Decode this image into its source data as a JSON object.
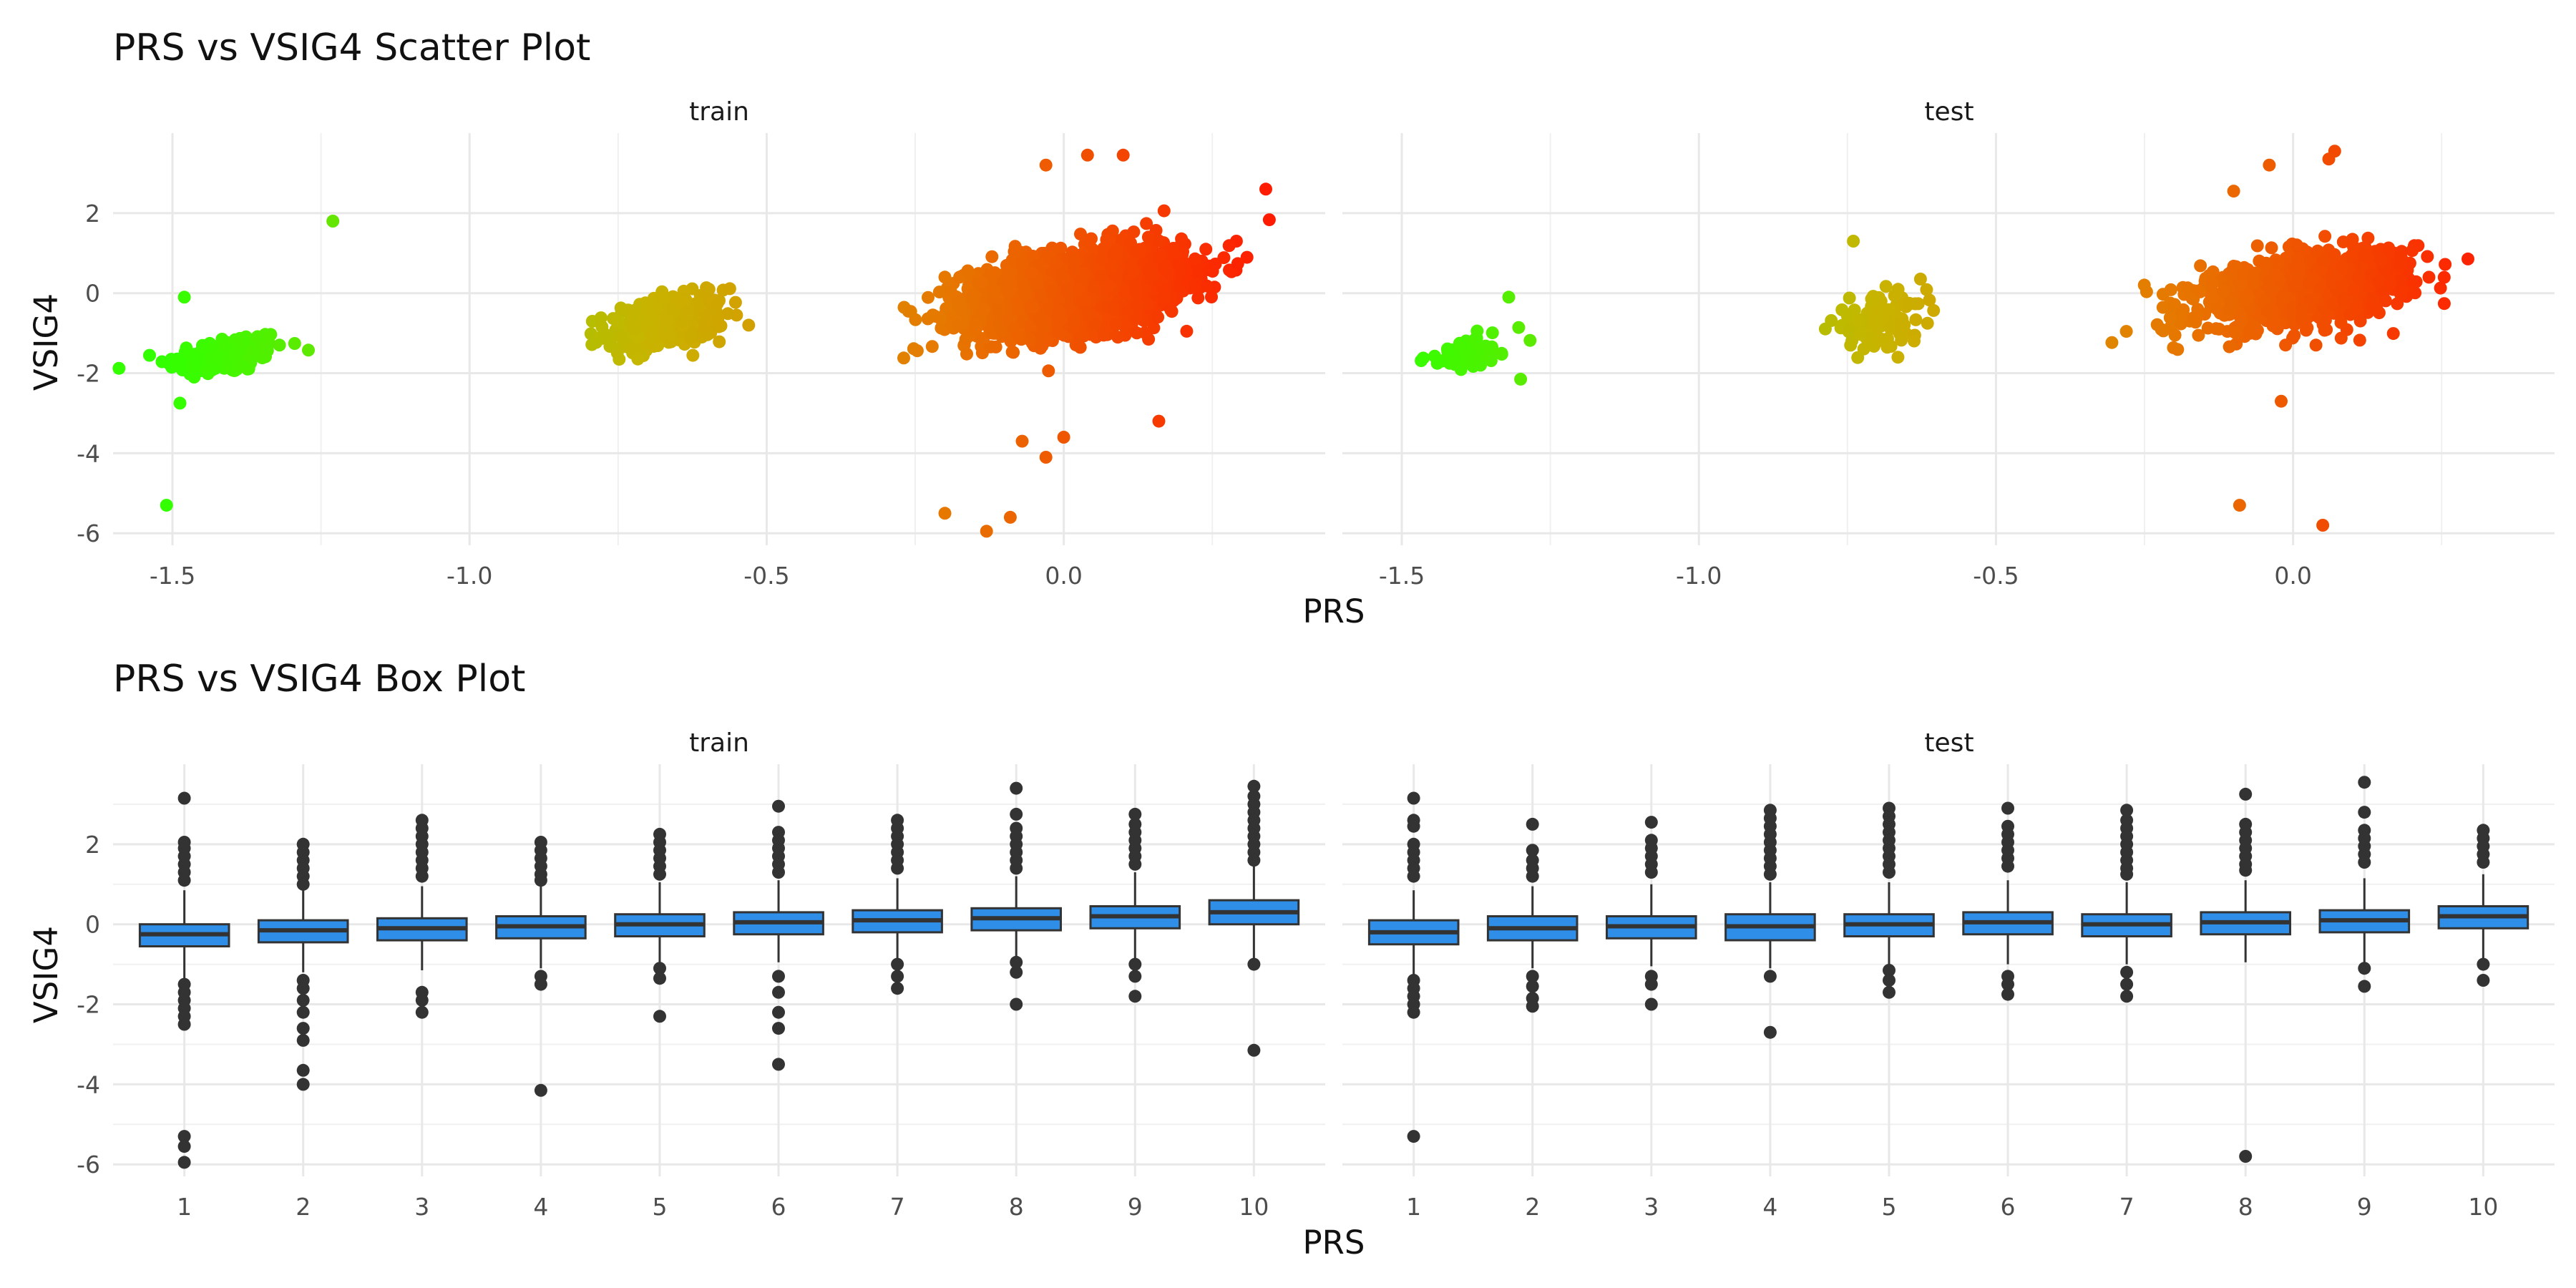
{
  "chart_data": [
    {
      "type": "scatter",
      "title": "PRS vs VSIG4 Scatter Plot",
      "xlabel": "PRS",
      "ylabel": "VSIG4",
      "xlim": [
        -1.6,
        0.44
      ],
      "ylim": [
        -6.3,
        4.0
      ],
      "x_ticks": [
        -1.5,
        -1.0,
        -0.5,
        0.0
      ],
      "y_ticks": [
        -6,
        -4,
        -2,
        0,
        2
      ],
      "x_tick_labels": [
        "-1.5",
        "-1.0",
        "-0.5",
        "0.0"
      ],
      "y_tick_labels": [
        "-6",
        "-4",
        "-2",
        "0",
        "2"
      ],
      "grid": true,
      "color_scale": {
        "low": "#33ff00",
        "mid": "#c8b400",
        "high": "#ff1a00"
      },
      "panels": [
        {
          "name": "train",
          "clusters": [
            {
              "center": [
                -1.41,
                -1.55
              ],
              "spread": [
                0.05,
                0.35
              ],
              "count": 180
            },
            {
              "center": [
                -0.67,
                -0.75
              ],
              "spread": [
                0.05,
                0.45
              ],
              "count": 320
            },
            {
              "center": [
                0.02,
                0.05
              ],
              "spread": [
                0.09,
                0.7
              ],
              "count": 2200
            }
          ],
          "outliers": [
            [
              -1.23,
              1.8
            ],
            [
              -1.51,
              -5.3
            ],
            [
              -1.48,
              -0.1
            ],
            [
              0.16,
              -3.2
            ],
            [
              0.34,
              2.6
            ],
            [
              -0.2,
              -5.5
            ],
            [
              -0.13,
              -5.95
            ],
            [
              -0.09,
              -5.6
            ],
            [
              -0.07,
              -3.7
            ],
            [
              -0.03,
              -4.1
            ],
            [
              0.0,
              -3.6
            ],
            [
              -0.03,
              3.2
            ],
            [
              0.04,
              3.45
            ],
            [
              0.1,
              3.45
            ],
            [
              -0.2,
              0.4
            ]
          ]
        },
        {
          "name": "test",
          "clusters": [
            {
              "center": [
                -1.38,
                -1.5
              ],
              "spread": [
                0.04,
                0.3
              ],
              "count": 60
            },
            {
              "center": [
                -0.7,
                -0.7
              ],
              "spread": [
                0.04,
                0.45
              ],
              "count": 110
            },
            {
              "center": [
                0.02,
                0.1
              ],
              "spread": [
                0.09,
                0.6
              ],
              "count": 1000
            }
          ],
          "outliers": [
            [
              -1.32,
              -0.1
            ],
            [
              -1.3,
              -2.15
            ],
            [
              -0.74,
              1.3
            ],
            [
              -0.09,
              -5.3
            ],
            [
              0.05,
              -5.8
            ],
            [
              -0.02,
              -2.7
            ],
            [
              -0.1,
              2.55
            ],
            [
              0.07,
              3.55
            ],
            [
              -0.04,
              3.2
            ],
            [
              0.06,
              3.35
            ]
          ]
        }
      ]
    },
    {
      "type": "box",
      "title": "PRS vs VSIG4 Box Plot",
      "xlabel": "PRS",
      "ylabel": "VSIG4",
      "categories": [
        "1",
        "2",
        "3",
        "4",
        "5",
        "6",
        "7",
        "8",
        "9",
        "10"
      ],
      "ylim": [
        -6.3,
        4.0
      ],
      "y_ticks": [
        -6,
        -4,
        -2,
        0,
        2
      ],
      "y_tick_labels": [
        "-6",
        "-4",
        "-2",
        "0",
        "2"
      ],
      "box_color": "#2e8ee8",
      "grid": true,
      "panels": [
        {
          "name": "train",
          "boxes": [
            {
              "q1": -0.55,
              "median": -0.25,
              "q3": 0.0,
              "whisker_low": -1.35,
              "whisker_high": 0.85,
              "outliers": [
                3.15,
                2.05,
                1.9,
                1.7,
                1.5,
                1.3,
                1.1,
                -1.5,
                -1.7,
                -1.9,
                -2.1,
                -2.3,
                -2.5,
                -5.3,
                -5.55,
                -5.95
              ]
            },
            {
              "q1": -0.45,
              "median": -0.15,
              "q3": 0.1,
              "whisker_low": -1.2,
              "whisker_high": 0.9,
              "outliers": [
                2.0,
                1.8,
                1.6,
                1.4,
                1.2,
                1.0,
                -1.4,
                -1.6,
                -1.9,
                -2.2,
                -2.6,
                -2.9,
                -3.65,
                -4.0
              ]
            },
            {
              "q1": -0.4,
              "median": -0.1,
              "q3": 0.15,
              "whisker_low": -1.15,
              "whisker_high": 0.95,
              "outliers": [
                2.6,
                2.4,
                2.2,
                2.0,
                1.8,
                1.6,
                1.4,
                1.2,
                -1.7,
                -1.9,
                -2.2
              ]
            },
            {
              "q1": -0.35,
              "median": -0.05,
              "q3": 0.2,
              "whisker_low": -1.1,
              "whisker_high": 1.0,
              "outliers": [
                2.05,
                1.85,
                1.65,
                1.45,
                1.25,
                1.1,
                -1.3,
                -1.5,
                -4.15
              ]
            },
            {
              "q1": -0.3,
              "median": 0.0,
              "q3": 0.25,
              "whisker_low": -0.95,
              "whisker_high": 1.05,
              "outliers": [
                2.25,
                2.05,
                1.85,
                1.65,
                1.45,
                1.25,
                -1.1,
                -1.35,
                -2.3
              ]
            },
            {
              "q1": -0.25,
              "median": 0.05,
              "q3": 0.3,
              "whisker_low": -0.95,
              "whisker_high": 1.1,
              "outliers": [
                2.95,
                2.3,
                2.1,
                1.9,
                1.7,
                1.5,
                1.3,
                -1.3,
                -1.7,
                -2.2,
                -2.6,
                -3.5
              ]
            },
            {
              "q1": -0.2,
              "median": 0.1,
              "q3": 0.35,
              "whisker_low": -0.9,
              "whisker_high": 1.15,
              "outliers": [
                2.6,
                2.4,
                2.2,
                2.0,
                1.8,
                1.6,
                1.4,
                -1.0,
                -1.3,
                -1.6
              ]
            },
            {
              "q1": -0.15,
              "median": 0.15,
              "q3": 0.4,
              "whisker_low": -0.85,
              "whisker_high": 1.2,
              "outliers": [
                3.4,
                2.75,
                2.4,
                2.2,
                2.0,
                1.8,
                1.6,
                1.4,
                -0.95,
                -1.2,
                -2.0
              ]
            },
            {
              "q1": -0.1,
              "median": 0.2,
              "q3": 0.45,
              "whisker_low": -0.85,
              "whisker_high": 1.3,
              "outliers": [
                2.75,
                2.5,
                2.3,
                2.1,
                1.9,
                1.7,
                1.5,
                -1.0,
                -1.3,
                -1.8
              ]
            },
            {
              "q1": 0.0,
              "median": 0.3,
              "q3": 0.6,
              "whisker_low": -0.85,
              "whisker_high": 1.45,
              "outliers": [
                3.45,
                3.2,
                3.0,
                2.8,
                2.6,
                2.4,
                2.2,
                2.0,
                1.8,
                1.6,
                -1.0,
                -3.15
              ]
            }
          ]
        },
        {
          "name": "test",
          "boxes": [
            {
              "q1": -0.5,
              "median": -0.2,
              "q3": 0.1,
              "whisker_low": -1.3,
              "whisker_high": 0.85,
              "outliers": [
                3.15,
                2.6,
                2.45,
                2.0,
                1.8,
                1.6,
                1.4,
                1.2,
                -1.4,
                -1.6,
                -1.8,
                -2.0,
                -2.2,
                -5.3
              ]
            },
            {
              "q1": -0.4,
              "median": -0.1,
              "q3": 0.2,
              "whisker_low": -1.1,
              "whisker_high": 0.95,
              "outliers": [
                2.5,
                1.85,
                1.6,
                1.4,
                1.2,
                -1.3,
                -1.55,
                -1.85,
                -2.05
              ]
            },
            {
              "q1": -0.35,
              "median": -0.05,
              "q3": 0.2,
              "whisker_low": -1.05,
              "whisker_high": 1.0,
              "outliers": [
                2.55,
                2.1,
                1.9,
                1.7,
                1.5,
                1.3,
                -1.3,
                -1.5,
                -2.0
              ]
            },
            {
              "q1": -0.4,
              "median": -0.05,
              "q3": 0.25,
              "whisker_low": -1.1,
              "whisker_high": 1.05,
              "outliers": [
                2.85,
                2.65,
                2.45,
                2.25,
                2.05,
                1.85,
                1.65,
                1.45,
                1.25,
                -1.3,
                -2.7
              ]
            },
            {
              "q1": -0.3,
              "median": 0.0,
              "q3": 0.25,
              "whisker_low": -1.0,
              "whisker_high": 1.05,
              "outliers": [
                2.9,
                2.7,
                2.5,
                2.3,
                2.1,
                1.9,
                1.7,
                1.5,
                1.3,
                -1.15,
                -1.4,
                -1.7
              ]
            },
            {
              "q1": -0.25,
              "median": 0.05,
              "q3": 0.3,
              "whisker_low": -1.0,
              "whisker_high": 1.1,
              "outliers": [
                2.9,
                2.45,
                2.25,
                2.05,
                1.85,
                1.65,
                1.45,
                -1.3,
                -1.5,
                -1.75
              ]
            },
            {
              "q1": -0.3,
              "median": 0.0,
              "q3": 0.25,
              "whisker_low": -1.0,
              "whisker_high": 1.05,
              "outliers": [
                2.85,
                2.6,
                2.4,
                2.2,
                2.0,
                1.8,
                1.6,
                1.4,
                1.25,
                -1.2,
                -1.5,
                -1.8
              ]
            },
            {
              "q1": -0.25,
              "median": 0.05,
              "q3": 0.3,
              "whisker_low": -0.95,
              "whisker_high": 1.1,
              "outliers": [
                3.25,
                2.5,
                2.3,
                2.1,
                1.9,
                1.7,
                1.5,
                1.35,
                -5.8
              ]
            },
            {
              "q1": -0.2,
              "median": 0.1,
              "q3": 0.35,
              "whisker_low": -1.0,
              "whisker_high": 1.15,
              "outliers": [
                3.55,
                2.8,
                2.35,
                2.15,
                1.95,
                1.75,
                1.55,
                -1.1,
                -1.55
              ]
            },
            {
              "q1": -0.1,
              "median": 0.2,
              "q3": 0.45,
              "whisker_low": -0.95,
              "whisker_high": 1.25,
              "outliers": [
                2.35,
                2.15,
                1.95,
                1.75,
                1.55,
                -1.0,
                -1.4
              ]
            }
          ]
        }
      ]
    }
  ]
}
